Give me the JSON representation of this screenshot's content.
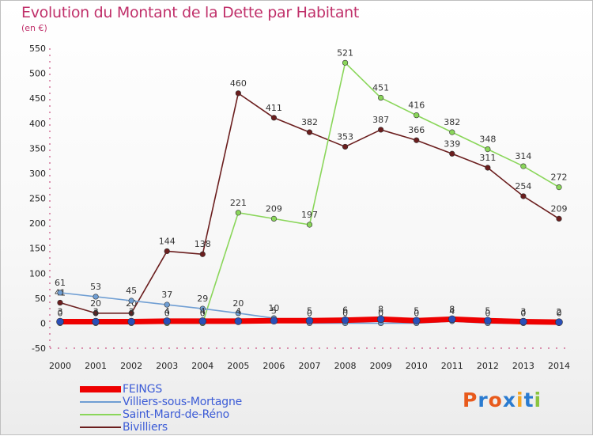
{
  "chart_data": {
    "type": "line",
    "title": "Evolution du Montant de la Dette par Habitant",
    "subtitle": "(en €)",
    "x": [
      "2000",
      "2001",
      "2002",
      "2003",
      "2004",
      "2005",
      "2006",
      "2007",
      "2008",
      "2009",
      "2010",
      "2011",
      "2012",
      "2013",
      "2014"
    ],
    "ylim": [
      -50,
      550
    ],
    "yticks": [
      -50,
      0,
      50,
      100,
      150,
      200,
      250,
      300,
      350,
      400,
      450,
      500,
      550
    ],
    "grid": false,
    "legend_position": "bottom-left",
    "series": [
      {
        "name": "Bivilliers",
        "color": "#6b1e1e",
        "values": [
          41,
          20,
          20,
          144,
          138,
          460,
          411,
          382,
          353,
          387,
          366,
          339,
          311,
          254,
          209
        ],
        "labels": [
          "41",
          "20",
          "20",
          "144",
          "138",
          "460",
          "411",
          "382",
          "353",
          "387",
          "366",
          "339",
          "311",
          "254",
          "209"
        ]
      },
      {
        "name": "Saint-Mard-de-Réno",
        "color": "#8ad65a",
        "values": [
          0,
          0,
          0,
          0,
          0,
          221,
          209,
          197,
          521,
          451,
          416,
          382,
          348,
          314,
          272
        ],
        "labels": [
          "0",
          "0",
          "0",
          "0",
          "0",
          "221",
          "209",
          "197",
          "521",
          "451",
          "416",
          "382",
          "348",
          "314",
          "272"
        ]
      },
      {
        "name": "Villiers-sous-Mortagne",
        "color": "#6f9ed3",
        "values": [
          61,
          53,
          45,
          37,
          29,
          20,
          10,
          0,
          0,
          0,
          0,
          4,
          0,
          0,
          0
        ],
        "labels": [
          "61",
          "53",
          "45",
          "37",
          "29",
          "20",
          "10",
          "0",
          "0",
          "0",
          "0",
          "4",
          "0",
          "0",
          "0"
        ]
      },
      {
        "name": "FEINGS",
        "color": "#ee0000",
        "values": [
          3,
          3,
          3,
          4,
          4,
          4,
          5,
          5,
          6,
          8,
          5,
          8,
          5,
          3,
          2
        ],
        "labels": [
          "3",
          "3",
          "3",
          "4",
          "4",
          "4",
          "5",
          "5",
          "6",
          "8",
          "5",
          "8",
          "5",
          "3",
          "2"
        ]
      }
    ],
    "legend_order": [
      "FEINGS",
      "Villiers-sous-Mortagne",
      "Saint-Mard-de-Réno",
      "Bivilliers"
    ]
  },
  "logo": {
    "letters": [
      "P",
      "r",
      "o",
      "x",
      "i",
      "t",
      "i"
    ],
    "colors": [
      "#e85a1c",
      "#2a7bd0",
      "#e85a1c",
      "#2a7bd0",
      "#f5a623",
      "#2a7bd0",
      "#8ac43f"
    ]
  }
}
